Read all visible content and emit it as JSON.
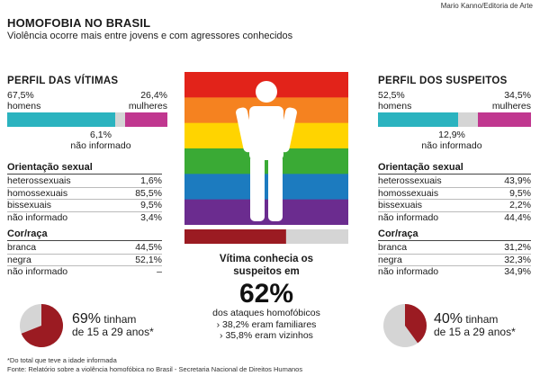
{
  "credit": "Mario Kanno/Editoria de Arte",
  "title": "HOMOFOBIA NO BRASIL",
  "subtitle": "Violência ocorre mais entre jovens e com agressores conhecidos",
  "colors": {
    "teal": "#2bb3bf",
    "magenta": "#c0378f",
    "gray": "#d5d5d5",
    "darkred": "#9b1b22",
    "rainbow": [
      "#e2231a",
      "#f58220",
      "#ffd400",
      "#3aaa35",
      "#1c7bbf",
      "#6b2c8f"
    ]
  },
  "victims": {
    "heading": "PERFIL DAS VÍTIMAS",
    "men_pct": "67,5%",
    "men_label": "homens",
    "women_pct": "26,4%",
    "women_label": "mulheres",
    "ni_pct": "6,1%",
    "ni_label": "não informado",
    "bar": [
      67.5,
      6.1,
      26.4
    ],
    "orientation": {
      "heading": "Orientação sexual",
      "rows": [
        {
          "label": "heterossexuais",
          "value": "1,6%"
        },
        {
          "label": "homossexuais",
          "value": "85,5%"
        },
        {
          "label": "bissexuais",
          "value": "9,5%"
        },
        {
          "label": "não informado",
          "value": "3,4%"
        }
      ]
    },
    "race": {
      "heading": "Cor/raça",
      "rows": [
        {
          "label": "branca",
          "value": "44,5%"
        },
        {
          "label": "negra",
          "value": "52,1%"
        },
        {
          "label": "não informado",
          "value": "–"
        }
      ]
    },
    "age": {
      "pct": "69%",
      "line1": "tinham",
      "line2": "de 15 a 29 anos*",
      "fraction": 0.69
    }
  },
  "suspects": {
    "heading": "PERFIL DOS SUSPEITOS",
    "men_pct": "52,5%",
    "men_label": "homens",
    "women_pct": "34,5%",
    "women_label": "mulheres",
    "ni_pct": "12,9%",
    "ni_label": "não informado",
    "bar": [
      52.5,
      12.9,
      34.5
    ],
    "orientation": {
      "heading": "Orientação sexual",
      "rows": [
        {
          "label": "heterossexuais",
          "value": "43,9%"
        },
        {
          "label": "homossexuais",
          "value": "9,5%"
        },
        {
          "label": "bissexuais",
          "value": "2,2%"
        },
        {
          "label": "não informado",
          "value": "44,4%"
        }
      ]
    },
    "race": {
      "heading": "Cor/raça",
      "rows": [
        {
          "label": "branca",
          "value": "31,2%"
        },
        {
          "label": "negra",
          "value": "32,3%"
        },
        {
          "label": "não informado",
          "value": "34,9%"
        }
      ]
    },
    "age": {
      "pct": "40%",
      "line1": "tinham",
      "line2": "de 15 a 29 anos*",
      "fraction": 0.4
    }
  },
  "center": {
    "line1": "Vítima conhecia os",
    "line2": "suspeitos em",
    "big": "62%",
    "line3": "dos ataques homofóbicos",
    "b1": "› 38,2% eram familiares",
    "b2": "› 35,8% eram vizinhos",
    "bar_fraction": 0.62
  },
  "footnote1": "*Do total que teve a idade informada",
  "footnote2": "Fonte: Relatório sobre a violência homofóbica no Brasil - Secretaria Nacional de Direitos Humanos",
  "chart_data": [
    {
      "type": "bar",
      "title": "PERFIL DAS VÍTIMAS",
      "categories": [
        "homens",
        "não informado",
        "mulheres"
      ],
      "values": [
        67.5,
        6.1,
        26.4
      ]
    },
    {
      "type": "bar",
      "title": "PERFIL DOS SUSPEITOS",
      "categories": [
        "homens",
        "não informado",
        "mulheres"
      ],
      "values": [
        52.5,
        12.9,
        34.5
      ]
    },
    {
      "type": "pie",
      "categories": [
        "de 15 a 29 anos",
        "outros"
      ],
      "values": [
        69,
        31
      ]
    },
    {
      "type": "pie",
      "categories": [
        "de 15 a 29 anos",
        "outros"
      ],
      "values": [
        40,
        60
      ]
    },
    {
      "type": "bar",
      "categories": [
        "conhecia os suspeitos",
        "outros"
      ],
      "values": [
        62,
        38
      ]
    }
  ]
}
